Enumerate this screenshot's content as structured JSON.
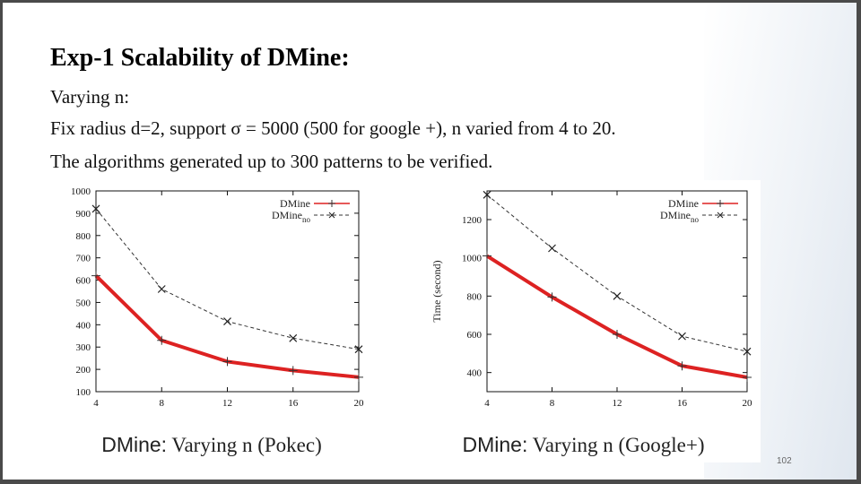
{
  "slide": {
    "title": "Exp-1 Scalability of DMine:",
    "line1": "Varying n:",
    "line2": "Fix radius d=2, support σ = 5000 (500 for google +), n varied from 4 to 20.",
    "line3": "The algorithms generated up to 300 patterns to be verified.",
    "page_number": "102",
    "accent_color": "#dd2222"
  },
  "chart_data": [
    {
      "type": "line",
      "x": [
        4,
        8,
        12,
        16,
        20
      ],
      "xlim": [
        4,
        20
      ],
      "ylim": [
        100,
        1000
      ],
      "yticks": [
        100,
        200,
        300,
        400,
        500,
        600,
        700,
        800,
        900,
        1000
      ],
      "xticks": [
        4,
        8,
        12,
        16,
        20
      ],
      "ylabel": "",
      "legend_position": "top-right",
      "caption_prefix": "DMine:",
      "caption_rest": " Varying n (Pokec)",
      "series": [
        {
          "name": "DMine",
          "values": [
            620,
            330,
            235,
            195,
            165
          ],
          "color": "#dd2222",
          "style": "solid"
        },
        {
          "name": "DMine",
          "name_sub": "no",
          "values": [
            920,
            560,
            415,
            340,
            290
          ],
          "color": "#333333",
          "style": "dashed"
        }
      ]
    },
    {
      "type": "line",
      "x": [
        4,
        8,
        12,
        16,
        20
      ],
      "xlim": [
        4,
        20
      ],
      "ylim": [
        300,
        1350
      ],
      "yticks": [
        400,
        600,
        800,
        1000,
        1200
      ],
      "xticks": [
        4,
        8,
        12,
        16,
        20
      ],
      "ylabel": "Time (second)",
      "legend_position": "top-right",
      "caption_prefix": "DMine:",
      "caption_rest": " Varying n (Google+)",
      "series": [
        {
          "name": "DMine",
          "values": [
            1010,
            795,
            600,
            435,
            375
          ],
          "color": "#dd2222",
          "style": "solid"
        },
        {
          "name": "DMine",
          "name_sub": "no",
          "values": [
            1330,
            1050,
            800,
            590,
            510
          ],
          "color": "#333333",
          "style": "dashed"
        }
      ]
    }
  ]
}
